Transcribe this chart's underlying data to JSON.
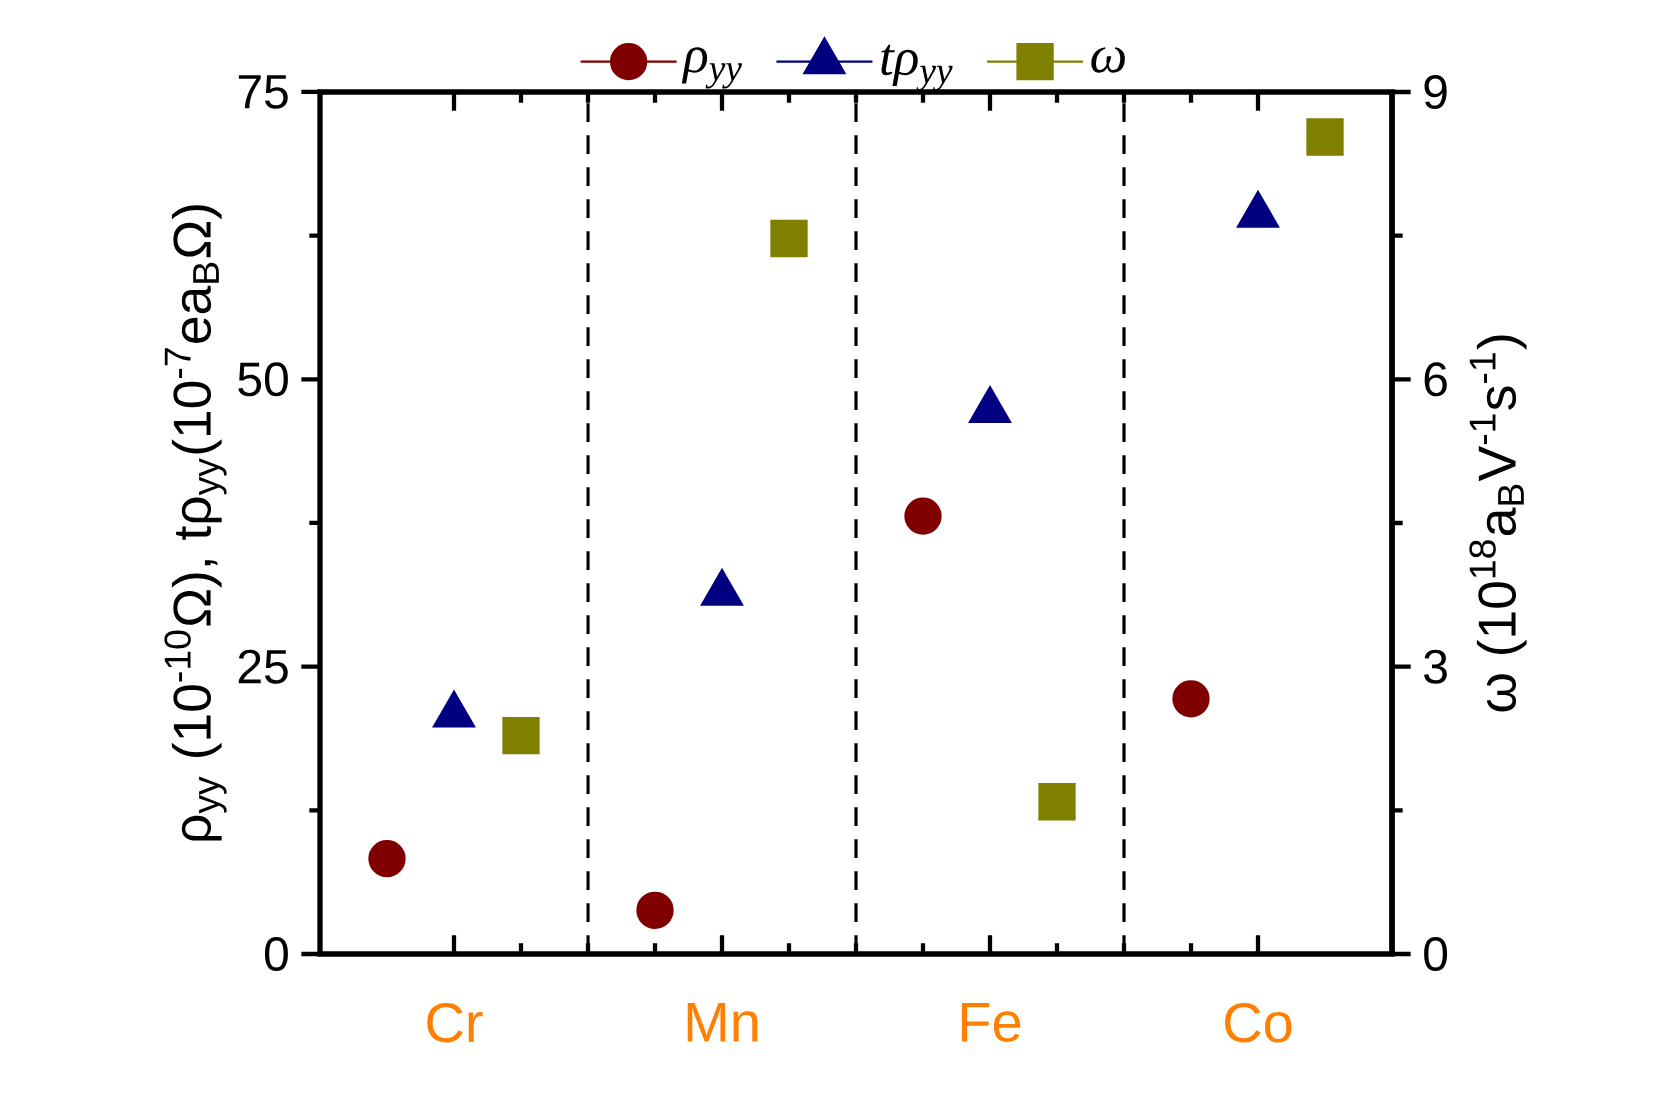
{
  "chart_data": {
    "type": "scatter",
    "ylabel": "ρ$_{yy}$ (10$^{-10}$Ω), tρ$_{yy}$(10$^{-7}$ea$_{B}$Ω)",
    "y2label": "ω (10$^{18}$a$_{B}$V$^{-1}$s$^{-1}$)",
    "categories": [
      "Cr",
      "Mn",
      "Fe",
      "Co"
    ],
    "ylim": [
      0,
      75
    ],
    "yticks": [
      0,
      25,
      50,
      75
    ],
    "y2lim": [
      0,
      9
    ],
    "y2ticks": [
      0,
      3,
      6,
      9
    ],
    "legend": "top",
    "series": [
      {
        "name": "ρ$_{yy}$",
        "color": "#800000",
        "marker": "circle",
        "values": [
          8.3,
          3.8,
          38.1,
          22.2
        ]
      },
      {
        "name": "tρ$_{yy}$",
        "color": "#000080",
        "marker": "triangle",
        "values": [
          20.8,
          31.4,
          47.3,
          64.3
        ]
      },
      {
        "name": "ω",
        "color": "#808000",
        "marker": "square",
        "axis": "y2",
        "values": [
          2.28,
          7.47,
          1.59,
          8.53
        ]
      }
    ]
  }
}
